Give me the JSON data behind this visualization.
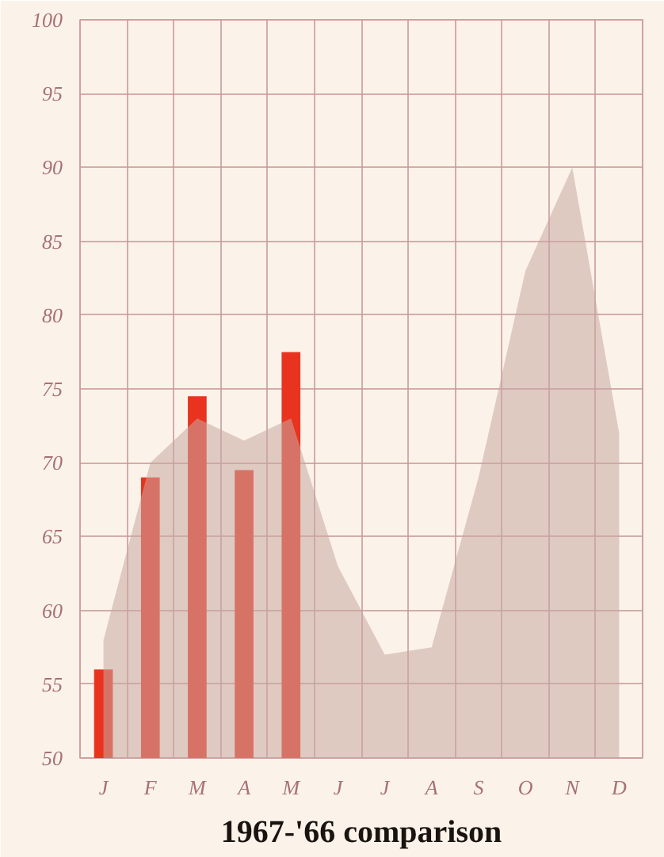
{
  "chart_data": {
    "type": "bar",
    "title": "1967-'66 comparison",
    "categories": [
      "J",
      "F",
      "M",
      "A",
      "M",
      "J",
      "J",
      "A",
      "S",
      "O",
      "N",
      "D"
    ],
    "series": [
      {
        "type": "area",
        "color": "#c9a8a0",
        "values": [
          58,
          70,
          73,
          71.5,
          73,
          63,
          57,
          57.5,
          69,
          83,
          90,
          72
        ]
      },
      {
        "color": "#e8341f",
        "values": [
          56,
          69,
          74.5,
          69.5,
          77.5,
          null,
          null,
          null,
          null,
          null,
          null,
          null
        ]
      }
    ],
    "ylim": [
      50,
      100
    ],
    "yticks": [
      50,
      55,
      60,
      65,
      70,
      75,
      80,
      85,
      90,
      95,
      100
    ],
    "grid": true
  }
}
